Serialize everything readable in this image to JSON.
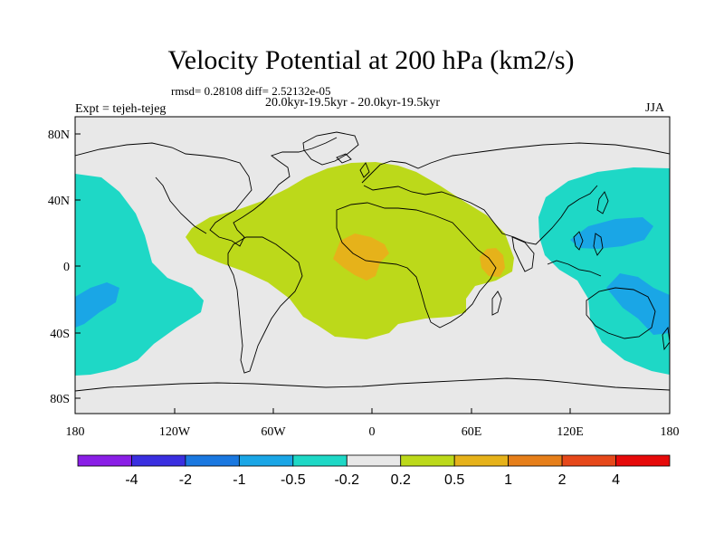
{
  "title": "Velocity Potential at 200 hPa (km2/s)",
  "stats_line": "rmsd= 0.28108 diff= 2.52132e-05",
  "period_line": "20.0kyr-19.5kyr - 20.0kyr-19.5kyr",
  "left_string": "Expt = tejeh-tejeg",
  "right_string": "JJA",
  "x_ticks": [
    "180",
    "120W",
    "60W",
    "0",
    "60E",
    "120E",
    "180"
  ],
  "y_ticks": [
    "80N",
    "40N",
    "0",
    "40S",
    "80S"
  ],
  "colorbar": {
    "colors": [
      "#8a1fe6",
      "#3a2fe0",
      "#1a78e0",
      "#1aa6e6",
      "#1ed8c6",
      "#e8e8e8",
      "#bcd91a",
      "#e6b21a",
      "#e67f1a",
      "#e6481a",
      "#e60a0a"
    ],
    "labels": [
      "-4",
      "-2",
      "-1",
      "-0.5",
      "-0.2",
      "0.2",
      "0.5",
      "1",
      "2",
      "4"
    ]
  }
}
